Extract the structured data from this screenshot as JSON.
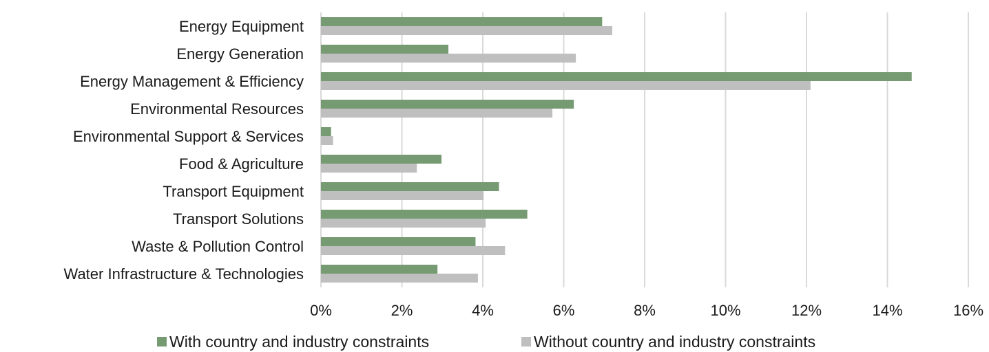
{
  "chart_data": {
    "type": "bar",
    "orientation": "horizontal",
    "categories": [
      "Energy Equipment",
      "Energy Generation",
      "Energy Management & Efficiency",
      "Environmental Resources",
      "Environmental Support & Services",
      "Food & Agriculture",
      "Transport Equipment",
      "Transport Solutions",
      "Waste & Pollution Control",
      "Water Infrastructure & Technologies"
    ],
    "series": [
      {
        "name": "With country and industry constraints",
        "color": "#769a72",
        "values": [
          6.95,
          3.15,
          14.6,
          6.25,
          0.25,
          2.98,
          4.4,
          5.1,
          3.82,
          2.88
        ]
      },
      {
        "name": "Without country and industry constraints",
        "color": "#bfbfbf",
        "values": [
          7.2,
          6.3,
          12.1,
          5.72,
          0.3,
          2.37,
          4.02,
          4.07,
          4.55,
          3.88
        ]
      }
    ],
    "xlim": [
      0,
      16
    ],
    "xticks": [
      0,
      2,
      4,
      6,
      8,
      10,
      12,
      14,
      16
    ],
    "xtick_labels": [
      "0%",
      "2%",
      "4%",
      "6%",
      "8%",
      "10%",
      "12%",
      "14%",
      "16%"
    ],
    "grid": "vertical",
    "legend": "bottom",
    "title": "",
    "xlabel": "",
    "ylabel": ""
  }
}
